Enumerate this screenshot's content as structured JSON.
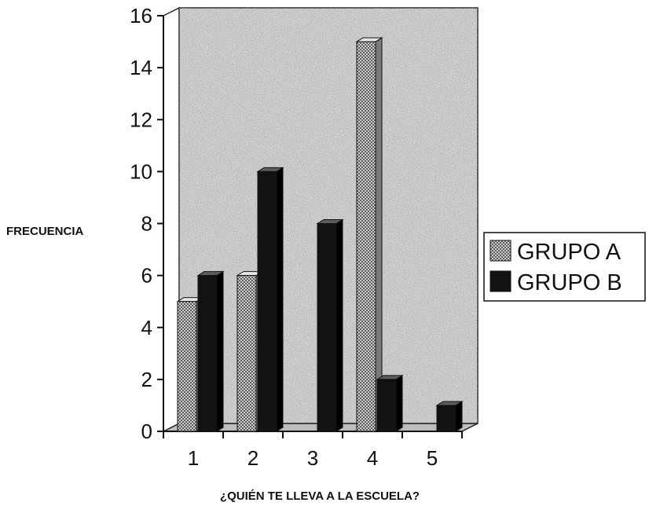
{
  "chart_data": {
    "type": "bar",
    "categories": [
      "1",
      "2",
      "3",
      "4",
      "5"
    ],
    "series": [
      {
        "name": "GRUPO A",
        "values": [
          5,
          6,
          0,
          15,
          0
        ],
        "color": "#9a9a9a"
      },
      {
        "name": "GRUPO B",
        "values": [
          6,
          10,
          8,
          2,
          1
        ],
        "color": "#121212"
      }
    ],
    "title": "",
    "xlabel": "¿QUIÉN TE LLEVA A LA ESCUELA?",
    "ylabel": "FRECUENCIA",
    "ylim": [
      0,
      16
    ],
    "yticks": [
      0,
      2,
      4,
      6,
      8,
      10,
      12,
      14,
      16
    ],
    "grid": false,
    "legend": "right",
    "three_d": true
  }
}
